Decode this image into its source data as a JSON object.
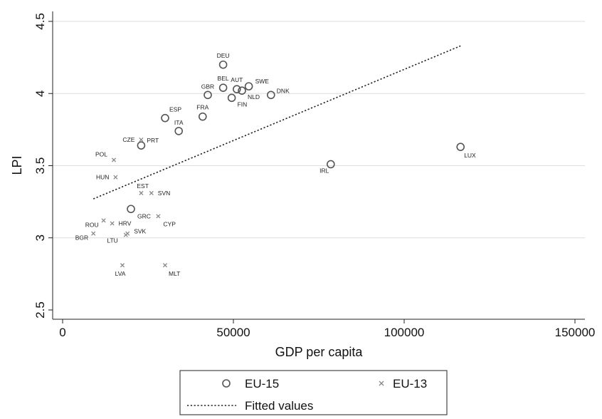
{
  "chart_data": {
    "type": "scatter",
    "xlabel": "GDP per capita",
    "ylabel": "LPI",
    "xlim": [
      0,
      150000
    ],
    "ylim": [
      2.5,
      4.5
    ],
    "x_ticks": [
      0,
      50000,
      100000,
      150000
    ],
    "x_tick_labels": [
      "0",
      "50000",
      "100000",
      "150000"
    ],
    "y_ticks": [
      2.5,
      3,
      3.5,
      4,
      4.5
    ],
    "y_tick_labels": [
      "2.5",
      "3",
      "3.5",
      "4",
      "4.5"
    ],
    "grid": "horizontal",
    "legend_position": "bottom",
    "series": [
      {
        "name": "EU-15",
        "marker": "circle",
        "color": "#555555",
        "points": [
          {
            "label": "DEU",
            "x": 47000,
            "y": 4.2
          },
          {
            "label": "BEL",
            "x": 47000,
            "y": 4.04
          },
          {
            "label": "AUT",
            "x": 51000,
            "y": 4.03
          },
          {
            "label": "SWE",
            "x": 54500,
            "y": 4.05
          },
          {
            "label": "NLD",
            "x": 52500,
            "y": 4.02
          },
          {
            "label": "GBR",
            "x": 42500,
            "y": 3.99
          },
          {
            "label": "FIN",
            "x": 49500,
            "y": 3.97
          },
          {
            "label": "DNK",
            "x": 61000,
            "y": 3.99
          },
          {
            "label": "FRA",
            "x": 41000,
            "y": 3.84
          },
          {
            "label": "ESP",
            "x": 30000,
            "y": 3.83
          },
          {
            "label": "ITA",
            "x": 34000,
            "y": 3.74
          },
          {
            "label": "PRT",
            "x": 23000,
            "y": 3.64
          },
          {
            "label": "IRL",
            "x": 78500,
            "y": 3.51
          },
          {
            "label": "LUX",
            "x": 116500,
            "y": 3.63
          },
          {
            "label": "GRC",
            "x": 20000,
            "y": 3.2
          }
        ]
      },
      {
        "name": "EU-13",
        "marker": "x",
        "color": "#888888",
        "points": [
          {
            "label": "CZE",
            "x": 23000,
            "y": 3.68
          },
          {
            "label": "POL",
            "x": 15000,
            "y": 3.54
          },
          {
            "label": "HUN",
            "x": 15500,
            "y": 3.42
          },
          {
            "label": "SVN",
            "x": 26000,
            "y": 3.31
          },
          {
            "label": "EST",
            "x": 23000,
            "y": 3.31
          },
          {
            "label": "CYP",
            "x": 28000,
            "y": 3.15
          },
          {
            "label": "HRV",
            "x": 14500,
            "y": 3.1
          },
          {
            "label": "ROU",
            "x": 12000,
            "y": 3.12
          },
          {
            "label": "SVK",
            "x": 19000,
            "y": 3.03
          },
          {
            "label": "LTU",
            "x": 18500,
            "y": 3.02
          },
          {
            "label": "BGR",
            "x": 9000,
            "y": 3.03
          },
          {
            "label": "LVA",
            "x": 17500,
            "y": 2.81
          },
          {
            "label": "MLT",
            "x": 30000,
            "y": 2.81
          }
        ]
      },
      {
        "name": "Fitted values",
        "type": "line",
        "style": "dotted",
        "color": "#222222",
        "points": [
          {
            "x": 9000,
            "y": 3.27
          },
          {
            "x": 116500,
            "y": 4.33
          }
        ]
      }
    ]
  }
}
